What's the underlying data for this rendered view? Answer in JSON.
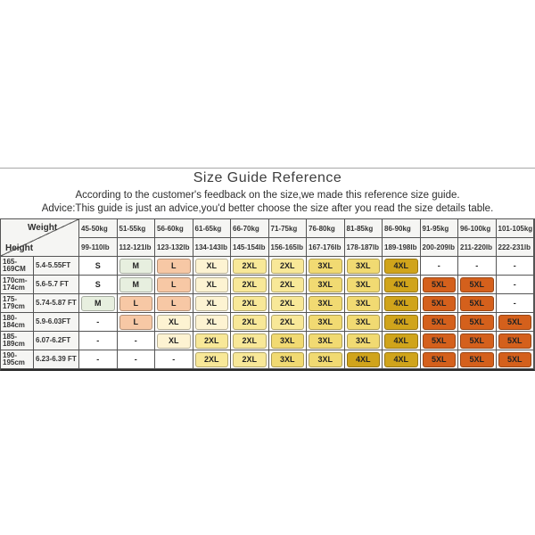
{
  "page": {
    "title": "Size Guide Reference",
    "subtitle1": "According to the customer's feedback on the size,we made this reference size guide.",
    "subtitle2": "Advice:This guide is just an advice,you'd better choose the size after you read the size details table."
  },
  "table": {
    "corner": {
      "top_label": "Weight",
      "bottom_label": "Height"
    },
    "weight_columns": [
      {
        "kg": "45-50kg",
        "lb": "99-110lb"
      },
      {
        "kg": "51-55kg",
        "lb": "112-121lb"
      },
      {
        "kg": "56-60kg",
        "lb": "123-132lb"
      },
      {
        "kg": "61-65kg",
        "lb": "134-143lb"
      },
      {
        "kg": "66-70kg",
        "lb": "145-154lb"
      },
      {
        "kg": "71-75kg",
        "lb": "156-165lb"
      },
      {
        "kg": "76-80kg",
        "lb": "167-176lb"
      },
      {
        "kg": "81-85kg",
        "lb": "178-187lb"
      },
      {
        "kg": "86-90kg",
        "lb": "189-198lb"
      },
      {
        "kg": "91-95kg",
        "lb": "200-209lb"
      },
      {
        "kg": "96-100kg",
        "lb": "211-220lb"
      },
      {
        "kg": "101-105kg",
        "lb": "222-231lb"
      }
    ],
    "rows": [
      {
        "cm": "165-169CM",
        "ft": "5.4-5.55FT",
        "sizes": [
          "S",
          "M",
          "L",
          "XL",
          "2XL",
          "2XL",
          "3XL",
          "3XL",
          "4XL",
          "-",
          "-",
          "-"
        ]
      },
      {
        "cm": "170cm-174cm",
        "ft": "5.6-5.7 FT",
        "sizes": [
          "S",
          "M",
          "L",
          "XL",
          "2XL",
          "2XL",
          "3XL",
          "3XL",
          "4XL",
          "5XL",
          "5XL",
          "-"
        ]
      },
      {
        "cm": "175-179cm",
        "ft": "5.74-5.87 FT",
        "sizes": [
          "M",
          "L",
          "L",
          "XL",
          "2XL",
          "2XL",
          "3XL",
          "3XL",
          "4XL",
          "5XL",
          "5XL",
          "-"
        ]
      },
      {
        "cm": "180-184cm",
        "ft": "5.9-6.03FT",
        "sizes": [
          "-",
          "L",
          "XL",
          "XL",
          "2XL",
          "2XL",
          "3XL",
          "3XL",
          "4XL",
          "5XL",
          "5XL",
          "5XL"
        ]
      },
      {
        "cm": "185-189cm",
        "ft": "6.07-6.2FT",
        "sizes": [
          "-",
          "-",
          "XL",
          "2XL",
          "2XL",
          "3XL",
          "3XL",
          "3XL",
          "4XL",
          "5XL",
          "5XL",
          "5XL"
        ]
      },
      {
        "cm": "190-195cm",
        "ft": "6.23-6.39 FT",
        "sizes": [
          "-",
          "-",
          "-",
          "2XL",
          "2XL",
          "3XL",
          "3XL",
          "4XL",
          "4XL",
          "5XL",
          "5XL",
          "5XL"
        ]
      }
    ],
    "size_colors": {
      "S": "#ffffff",
      "M": "#e7efdf",
      "L": "#f7c8a5",
      "XL": "#fdf3d2",
      "2XL": "#f8e898",
      "3XL": "#f1da72",
      "4XL": "#d0a41b",
      "5XL": "#d4601c",
      "-": "#ffffff"
    }
  }
}
